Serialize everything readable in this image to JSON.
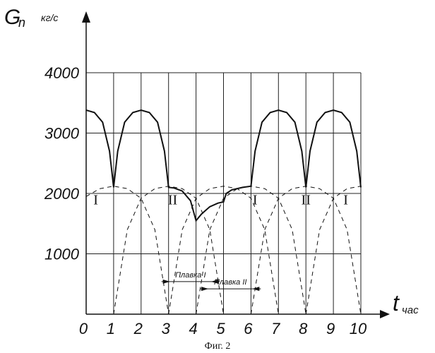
{
  "chart_data": {
    "type": "line",
    "y_axis": {
      "symbol": "G",
      "subscript": "n",
      "unit": "кг/с",
      "range": [
        0,
        4000
      ],
      "ticks": [
        1000,
        2000,
        3000,
        4000
      ]
    },
    "x_axis": {
      "symbol": "t",
      "subscript": "час",
      "range": [
        0,
        10
      ],
      "ticks": [
        0,
        1,
        2,
        3,
        4,
        5,
        6,
        7,
        8,
        9,
        10
      ]
    },
    "grid": true,
    "series": [
      {
        "style": "solid",
        "points": [
          [
            0,
            3380
          ],
          [
            0.3,
            3340
          ],
          [
            0.6,
            3180
          ],
          [
            0.85,
            2700
          ],
          [
            1.0,
            2100
          ],
          [
            1.15,
            2700
          ],
          [
            1.4,
            3180
          ],
          [
            1.7,
            3340
          ],
          [
            2.0,
            3380
          ],
          [
            2.3,
            3340
          ],
          [
            2.6,
            3180
          ],
          [
            2.85,
            2700
          ],
          [
            3.0,
            2100
          ],
          [
            3.2,
            2090
          ],
          [
            3.5,
            2040
          ],
          [
            3.8,
            1880
          ],
          [
            4.0,
            1550
          ],
          [
            4.2,
            1660
          ],
          [
            4.5,
            1780
          ],
          [
            4.8,
            1840
          ],
          [
            5.0,
            1860
          ],
          [
            5.1,
            2000
          ],
          [
            5.3,
            2060
          ],
          [
            5.7,
            2100
          ],
          [
            6.0,
            2120
          ],
          [
            6.15,
            2700
          ],
          [
            6.4,
            3180
          ],
          [
            6.7,
            3340
          ],
          [
            7.0,
            3380
          ],
          [
            7.3,
            3340
          ],
          [
            7.6,
            3180
          ],
          [
            7.85,
            2700
          ],
          [
            8.0,
            2100
          ],
          [
            8.15,
            2700
          ],
          [
            8.4,
            3180
          ],
          [
            8.7,
            3340
          ],
          [
            9.0,
            3380
          ],
          [
            9.3,
            3340
          ],
          [
            9.6,
            3180
          ],
          [
            9.85,
            2700
          ],
          [
            10.0,
            2100
          ]
        ]
      },
      {
        "style": "dashed",
        "points": [
          [
            0,
            1950
          ],
          [
            0.5,
            2080
          ],
          [
            1.0,
            2120
          ],
          [
            1.5,
            2080
          ],
          [
            2.0,
            1920
          ],
          [
            2.5,
            1400
          ],
          [
            3.0,
            0
          ]
        ]
      },
      {
        "style": "dashed",
        "points": [
          [
            1.0,
            0
          ],
          [
            1.5,
            1400
          ],
          [
            2.0,
            1920
          ],
          [
            2.5,
            2080
          ],
          [
            3.0,
            2120
          ],
          [
            3.5,
            2080
          ],
          [
            4.0,
            1920
          ],
          [
            4.5,
            1400
          ],
          [
            5.0,
            0
          ]
        ]
      },
      {
        "style": "dashed",
        "points": [
          [
            3.0,
            0
          ],
          [
            3.5,
            1400
          ],
          [
            4.0,
            1920
          ],
          [
            4.5,
            2080
          ],
          [
            5.0,
            2120
          ],
          [
            5.5,
            2080
          ],
          [
            6.0,
            1920
          ],
          [
            6.5,
            1400
          ],
          [
            7.0,
            0
          ]
        ]
      },
      {
        "style": "dashed",
        "points": [
          [
            4.0,
            0
          ],
          [
            4.5,
            1400
          ],
          [
            5.0,
            1920
          ],
          [
            5.5,
            2080
          ],
          [
            6.0,
            2120
          ],
          [
            6.5,
            2080
          ],
          [
            7.0,
            1920
          ],
          [
            7.5,
            1400
          ],
          [
            8.0,
            0
          ]
        ]
      },
      {
        "style": "dashed",
        "points": [
          [
            6.0,
            0
          ],
          [
            6.5,
            1400
          ],
          [
            7.0,
            1920
          ],
          [
            7.5,
            2080
          ],
          [
            8.0,
            2120
          ],
          [
            8.5,
            2080
          ],
          [
            9.0,
            1920
          ],
          [
            9.5,
            1400
          ],
          [
            10.0,
            0
          ]
        ]
      },
      {
        "style": "dashed",
        "points": [
          [
            8.0,
            0
          ],
          [
            8.5,
            1400
          ],
          [
            9.0,
            1920
          ],
          [
            9.5,
            2080
          ],
          [
            10.0,
            2120
          ]
        ]
      }
    ],
    "zone_labels": [
      {
        "text": "I",
        "x": 0.35,
        "y": 1820
      },
      {
        "text": "II",
        "x": 3.15,
        "y": 1820
      },
      {
        "text": "I",
        "x": 6.15,
        "y": 1820
      },
      {
        "text": "II",
        "x": 8.0,
        "y": 1820
      },
      {
        "text": "I",
        "x": 9.45,
        "y": 1820
      }
    ],
    "annotations": [
      {
        "text": "Плавка I",
        "from": 3.05,
        "to": 4.55,
        "y": 540
      },
      {
        "text": "Плавка II",
        "from": 4.45,
        "to": 6.05,
        "y": 420
      }
    ],
    "caption": "Фиг. 2"
  }
}
